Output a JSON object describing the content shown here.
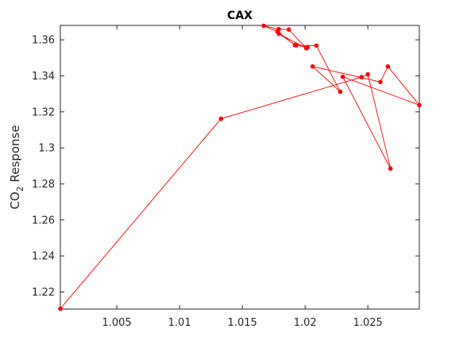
{
  "chart_data": {
    "type": "line",
    "title": "CAX",
    "xlabel": "",
    "ylabel_main": "CO",
    "ylabel_sub": "2",
    "ylabel_rest": " Response",
    "xlim": [
      1.0005,
      1.0291
    ],
    "ylim": [
      1.2105,
      1.368
    ],
    "xticks": [
      1.005,
      1.01,
      1.015,
      1.02,
      1.025
    ],
    "xtick_labels": [
      "1.005",
      "1.01",
      "1.015",
      "1.02",
      "1.025"
    ],
    "yticks": [
      1.22,
      1.24,
      1.26,
      1.28,
      1.3,
      1.32,
      1.34,
      1.36
    ],
    "ytick_labels": [
      "1.22",
      "1.24",
      "1.26",
      "1.28",
      "1.3",
      "1.32",
      "1.34",
      "1.36"
    ],
    "grid": false,
    "series": [
      {
        "color": "#ff0000",
        "marker": "circle",
        "points": [
          [
            1.0005,
            1.2107
          ],
          [
            1.0133,
            1.3162
          ],
          [
            1.0245,
            1.3393
          ],
          [
            1.025,
            1.3408
          ],
          [
            1.0268,
            1.2885
          ],
          [
            1.023,
            1.3395
          ],
          [
            1.0291,
            1.3238
          ],
          [
            1.0266,
            1.3452
          ],
          [
            1.026,
            1.3366
          ],
          [
            1.0206,
            1.3452
          ],
          [
            1.0228,
            1.3312
          ],
          [
            1.0209,
            1.3568
          ],
          [
            1.0193,
            1.3569
          ],
          [
            1.0179,
            1.3634
          ],
          [
            1.0201,
            1.3553
          ],
          [
            1.0187,
            1.3657
          ],
          [
            1.0179,
            1.3659
          ],
          [
            1.0167,
            1.3678
          ],
          [
            1.0178,
            1.3646
          ],
          [
            1.0192,
            1.3571
          ],
          [
            1.0202,
            1.3559
          ]
        ]
      }
    ]
  }
}
